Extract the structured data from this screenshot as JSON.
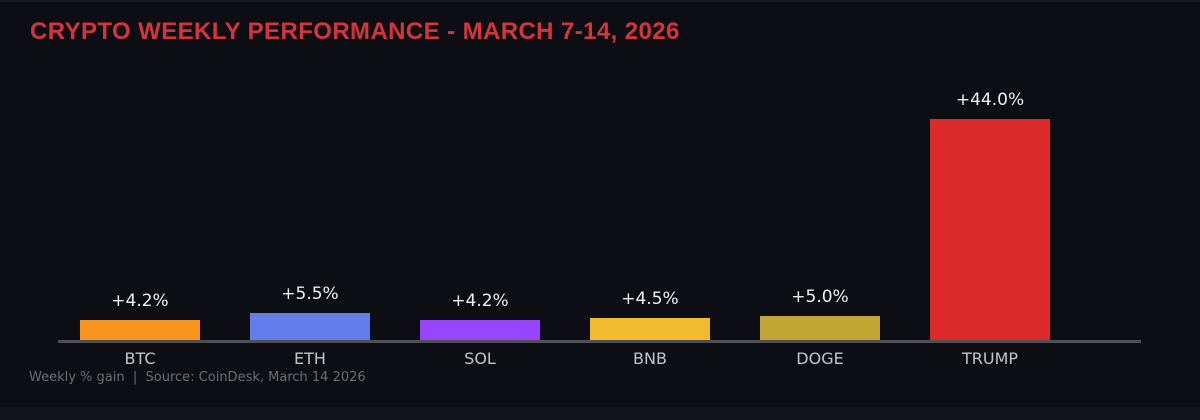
{
  "chart_data": {
    "type": "bar",
    "title": "CRYPTO WEEKLY PERFORMANCE - MARCH 7-14, 2026",
    "categories": [
      "BTC",
      "ETH",
      "SOL",
      "BNB",
      "DOGE",
      "TRUMP"
    ],
    "values": [
      4.2,
      5.5,
      4.2,
      4.5,
      5.0,
      44.0
    ],
    "value_labels": [
      "+4.2%",
      "+5.5%",
      "+4.2%",
      "+4.5%",
      "+5.0%",
      "+44.0%"
    ],
    "bar_colors": [
      "#f7941e",
      "#627eea",
      "#9945ff",
      "#f3ba2f",
      "#c2a633",
      "#dc2a2a"
    ],
    "xlabel": "",
    "ylabel": "",
    "ylim": [
      0,
      44
    ],
    "y_axis_visible": false,
    "grid": false,
    "legend": "none"
  },
  "footer": {
    "text": "Weekly % gain  |  Source: CoinDesk, March 14 2026"
  },
  "colors": {
    "background": "#0d0d14",
    "title_text": "#d5343c",
    "axis_line": "#4e5054",
    "value_label_text": "#f0f0f0",
    "category_label_text": "#c4c4c9",
    "footer_text": "#6c6c74"
  }
}
